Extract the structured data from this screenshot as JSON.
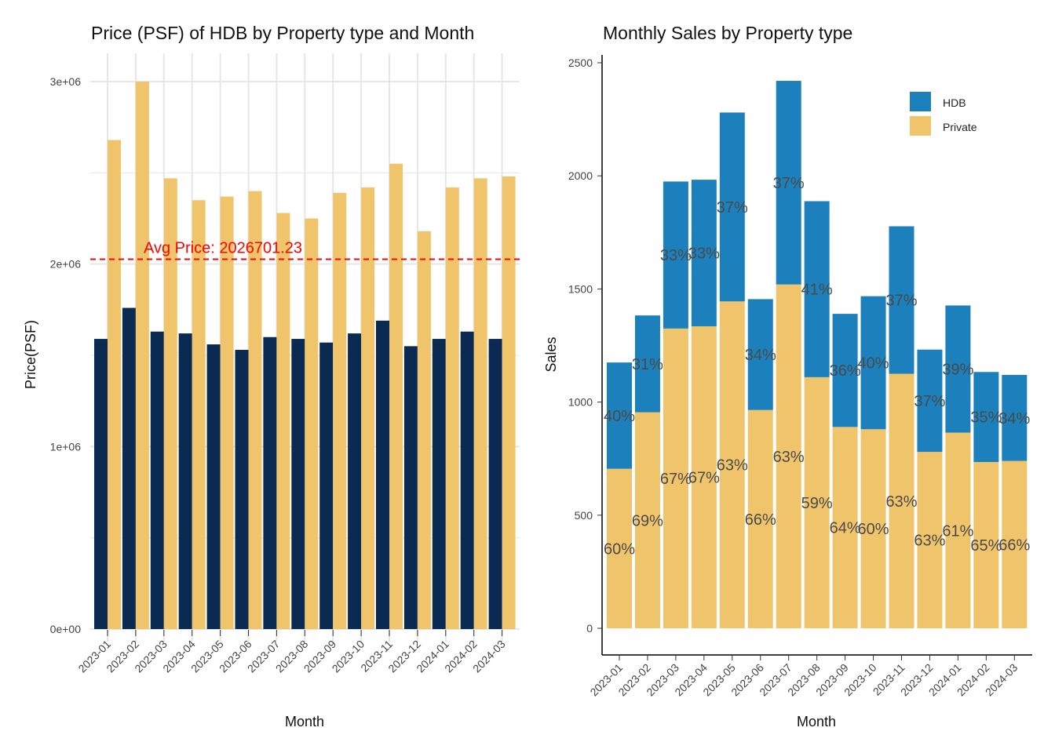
{
  "colors": {
    "hdb_left": "#0b2a52",
    "private": "#f0c46a",
    "hdb_right": "#1b80bb",
    "avg_line": "#ff0000",
    "grid": "#e6e6e6"
  },
  "chart_data": [
    {
      "type": "bar",
      "title": "Price (PSF) of HDB by Property type and Month",
      "xlabel": "Month",
      "ylabel": "Price(PSF)",
      "ylim": [
        0,
        3000000
      ],
      "y_ticks": [
        0,
        1000000,
        2000000,
        3000000
      ],
      "y_tick_labels": [
        "0e+00",
        "1e+06",
        "2e+06",
        "3e+06"
      ],
      "grid": true,
      "categories": [
        "2023-01",
        "2023-02",
        "2023-03",
        "2023-04",
        "2023-05",
        "2023-06",
        "2023-07",
        "2023-08",
        "2023-09",
        "2023-10",
        "2023-11",
        "2023-12",
        "2024-01",
        "2024-02",
        "2024-03"
      ],
      "series": [
        {
          "values": [
            1590000,
            1760000,
            1630000,
            1620000,
            1560000,
            1530000,
            1600000,
            1590000,
            1570000,
            1620000,
            1690000,
            1550000,
            1590000,
            1630000,
            1590000
          ]
        },
        {
          "values": [
            2680000,
            3000000,
            2470000,
            2350000,
            2370000,
            2400000,
            2280000,
            2250000,
            2390000,
            2420000,
            2550000,
            2180000,
            2420000,
            2470000,
            2480000
          ]
        }
      ],
      "reference_line": {
        "value": 2026701.23,
        "label": "Avg Price: 2026701.23",
        "style": "dashed"
      }
    },
    {
      "type": "bar",
      "stacked": true,
      "title": "Monthly Sales by Property type",
      "xlabel": "Month",
      "ylabel": "Sales",
      "ylim": [
        0,
        2500
      ],
      "y_ticks": [
        0,
        500,
        1000,
        1500,
        2000,
        2500
      ],
      "y_tick_labels": [
        "0",
        "500",
        "1000",
        "1500",
        "2000",
        "2500"
      ],
      "grid": false,
      "legend_position": "top-right",
      "categories": [
        "2023-01",
        "2023-02",
        "2023-03",
        "2023-04",
        "2023-05",
        "2023-06",
        "2023-07",
        "2023-08",
        "2023-09",
        "2023-10",
        "2023-11",
        "2023-12",
        "2024-01",
        "2024-02",
        "2024-03"
      ],
      "series": [
        {
          "name": "Private",
          "values": [
            705,
            955,
            1325,
            1335,
            1445,
            965,
            1520,
            1110,
            890,
            880,
            1125,
            780,
            865,
            735,
            740
          ],
          "labels": [
            "60%",
            "69%",
            "67%",
            "67%",
            "63%",
            "66%",
            "63%",
            "59%",
            "64%",
            "60%",
            "63%",
            "63%",
            "61%",
            "65%",
            "66%"
          ]
        },
        {
          "name": "HDB",
          "values": [
            470,
            428,
            650,
            648,
            835,
            490,
            900,
            778,
            500,
            588,
            652,
            452,
            562,
            398,
            380
          ],
          "labels": [
            "40%",
            "31%",
            "33%",
            "33%",
            "37%",
            "34%",
            "37%",
            "41%",
            "36%",
            "40%",
            "37%",
            "37%",
            "39%",
            "35%",
            "34%"
          ]
        }
      ]
    }
  ]
}
